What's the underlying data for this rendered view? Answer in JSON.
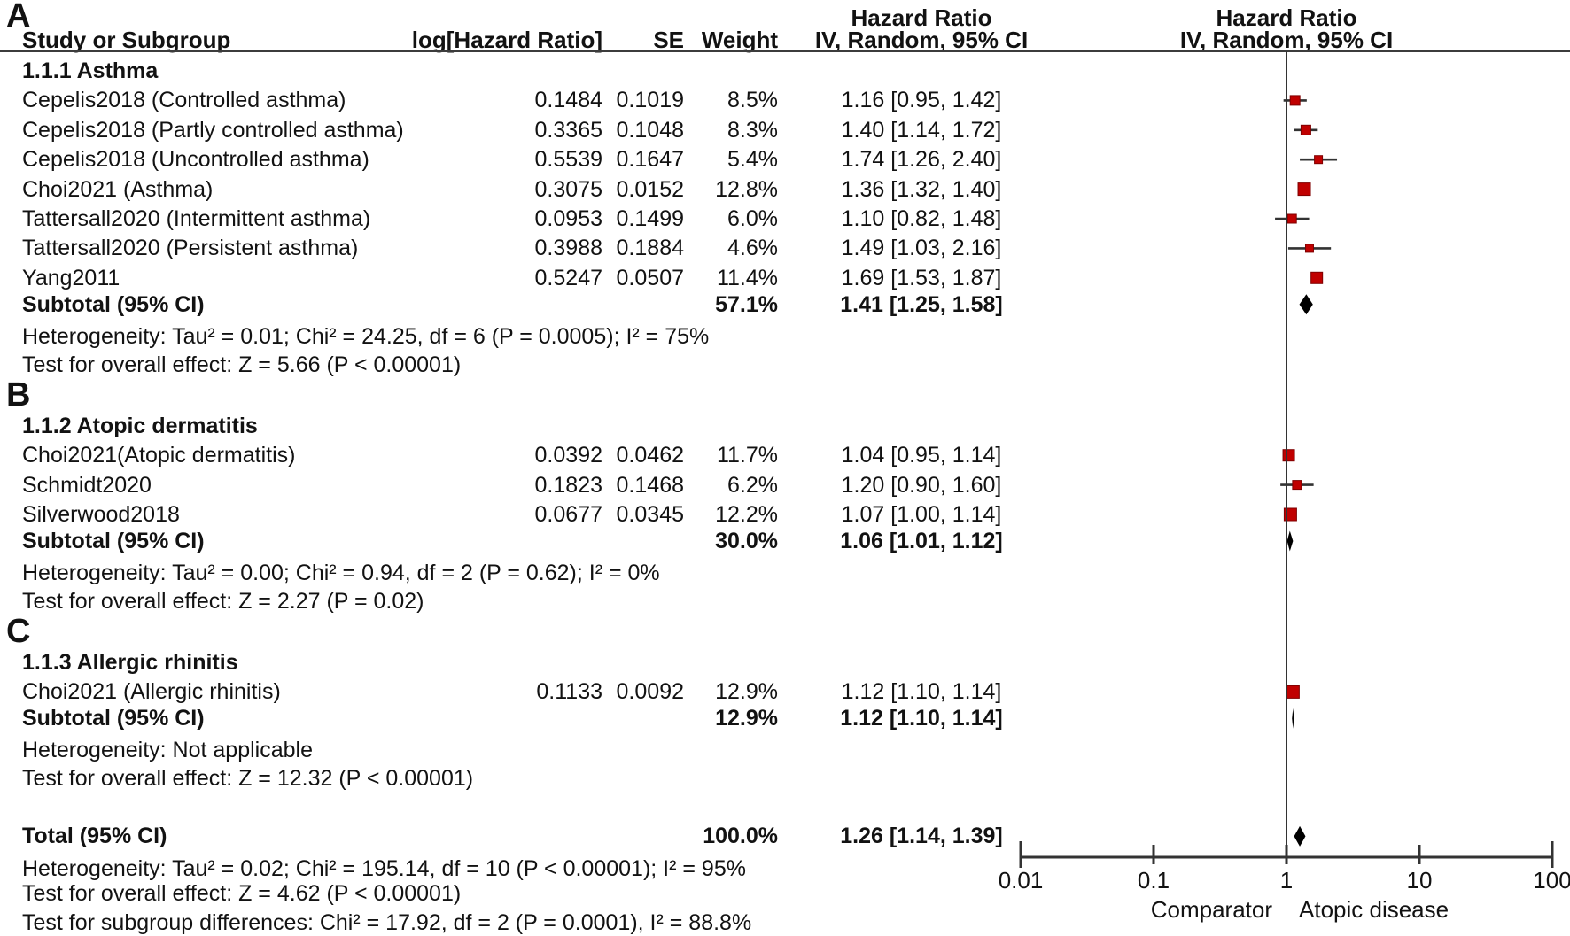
{
  "header": {
    "col_study": "Study or Subgroup",
    "col_loghr": "log[Hazard Ratio]",
    "col_se": "SE",
    "col_weight": "Weight",
    "hr_title": "Hazard Ratio",
    "hr_sub": "IV, Random, 95% CI"
  },
  "colors": {
    "marker_fill": "#c00000",
    "marker_edge": "#7f0000",
    "diamond": "#000000",
    "line": "#333333",
    "text": "#121212"
  },
  "chart_data": {
    "type": "forest",
    "effect_measure": "Hazard Ratio",
    "model": "IV, Random, 95% CI",
    "x_scale": "log10",
    "x_range": [
      0.01,
      100
    ],
    "axis": {
      "tick_values": [
        0.01,
        0.1,
        1,
        10,
        100
      ],
      "tick_labels": [
        "0.01",
        "0.1",
        "1",
        "10",
        "100"
      ],
      "left_label": "Comparator",
      "right_label": "Atopic disease"
    },
    "groups": [
      {
        "panel": "A",
        "title": "1.1.1 Asthma",
        "studies": [
          {
            "name": "Cepelis2018 (Controlled asthma)",
            "loghr": "0.1484",
            "se": "0.1019",
            "weight": "8.5%",
            "weight_pct": 8.5,
            "hr": 1.16,
            "lo": 0.95,
            "hi": 1.42,
            "ci": "1.16 [0.95, 1.42]"
          },
          {
            "name": "Cepelis2018 (Partly controlled asthma)",
            "loghr": "0.3365",
            "se": "0.1048",
            "weight": "8.3%",
            "weight_pct": 8.3,
            "hr": 1.4,
            "lo": 1.14,
            "hi": 1.72,
            "ci": "1.40 [1.14, 1.72]"
          },
          {
            "name": "Cepelis2018 (Uncontrolled asthma)",
            "loghr": "0.5539",
            "se": "0.1647",
            "weight": "5.4%",
            "weight_pct": 5.4,
            "hr": 1.74,
            "lo": 1.26,
            "hi": 2.4,
            "ci": "1.74 [1.26, 2.40]"
          },
          {
            "name": "Choi2021 (Asthma)",
            "loghr": "0.3075",
            "se": "0.0152",
            "weight": "12.8%",
            "weight_pct": 12.8,
            "hr": 1.36,
            "lo": 1.32,
            "hi": 1.4,
            "ci": "1.36 [1.32, 1.40]"
          },
          {
            "name": "Tattersall2020 (Intermittent asthma)",
            "loghr": "0.0953",
            "se": "0.1499",
            "weight": "6.0%",
            "weight_pct": 6.0,
            "hr": 1.1,
            "lo": 0.82,
            "hi": 1.48,
            "ci": "1.10 [0.82, 1.48]"
          },
          {
            "name": "Tattersall2020 (Persistent asthma)",
            "loghr": "0.3988",
            "se": "0.1884",
            "weight": "4.6%",
            "weight_pct": 4.6,
            "hr": 1.49,
            "lo": 1.03,
            "hi": 2.16,
            "ci": "1.49 [1.03, 2.16]"
          },
          {
            "name": "Yang2011",
            "loghr": "0.5247",
            "se": "0.0507",
            "weight": "11.4%",
            "weight_pct": 11.4,
            "hr": 1.69,
            "lo": 1.53,
            "hi": 1.87,
            "ci": "1.69 [1.53, 1.87]"
          }
        ],
        "subtotal": {
          "label": "Subtotal (95% CI)",
          "weight": "57.1%",
          "hr": 1.41,
          "lo": 1.25,
          "hi": 1.58,
          "ci": "1.41 [1.25, 1.58]"
        },
        "heterogeneity": "Heterogeneity: Tau² = 0.01; Chi² = 24.25, df = 6 (P = 0.0005); I² = 75%",
        "overall_effect": "Test for overall effect: Z = 5.66 (P < 0.00001)"
      },
      {
        "panel": "B",
        "title": "1.1.2 Atopic dermatitis",
        "studies": [
          {
            "name": "Choi2021(Atopic dermatitis)",
            "loghr": "0.0392",
            "se": "0.0462",
            "weight": "11.7%",
            "weight_pct": 11.7,
            "hr": 1.04,
            "lo": 0.95,
            "hi": 1.14,
            "ci": "1.04 [0.95, 1.14]"
          },
          {
            "name": "Schmidt2020",
            "loghr": "0.1823",
            "se": "0.1468",
            "weight": "6.2%",
            "weight_pct": 6.2,
            "hr": 1.2,
            "lo": 0.9,
            "hi": 1.6,
            "ci": "1.20 [0.90, 1.60]"
          },
          {
            "name": "Silverwood2018",
            "loghr": "0.0677",
            "se": "0.0345",
            "weight": "12.2%",
            "weight_pct": 12.2,
            "hr": 1.07,
            "lo": 1.0,
            "hi": 1.14,
            "ci": "1.07 [1.00, 1.14]"
          }
        ],
        "subtotal": {
          "label": "Subtotal (95% CI)",
          "weight": "30.0%",
          "hr": 1.06,
          "lo": 1.01,
          "hi": 1.12,
          "ci": "1.06 [1.01, 1.12]"
        },
        "heterogeneity": "Heterogeneity: Tau² = 0.00; Chi² = 0.94, df = 2 (P = 0.62); I² = 0%",
        "overall_effect": "Test for overall effect: Z = 2.27 (P = 0.02)"
      },
      {
        "panel": "C",
        "title": "1.1.3 Allergic rhinitis",
        "studies": [
          {
            "name": "Choi2021 (Allergic rhinitis)",
            "loghr": "0.1133",
            "se": "0.0092",
            "weight": "12.9%",
            "weight_pct": 12.9,
            "hr": 1.12,
            "lo": 1.1,
            "hi": 1.14,
            "ci": "1.12 [1.10, 1.14]"
          }
        ],
        "subtotal": {
          "label": "Subtotal (95% CI)",
          "weight": "12.9%",
          "hr": 1.12,
          "lo": 1.1,
          "hi": 1.14,
          "ci": "1.12 [1.10, 1.14]"
        },
        "heterogeneity": "Heterogeneity: Not applicable",
        "overall_effect": "Test for overall effect: Z = 12.32 (P < 0.00001)"
      }
    ],
    "total": {
      "label": "Total (95% CI)",
      "weight": "100.0%",
      "hr": 1.26,
      "lo": 1.14,
      "hi": 1.39,
      "ci": "1.26 [1.14, 1.39]",
      "heterogeneity": "Heterogeneity: Tau² = 0.02; Chi² = 195.14, df = 10 (P < 0.00001); I² = 95%",
      "overall_effect": "Test for overall effect: Z = 4.62 (P < 0.00001)",
      "subgroup_differences": "Test for subgroup differences: Chi² = 17.92, df = 2 (P = 0.0001), I² = 88.8%"
    }
  }
}
